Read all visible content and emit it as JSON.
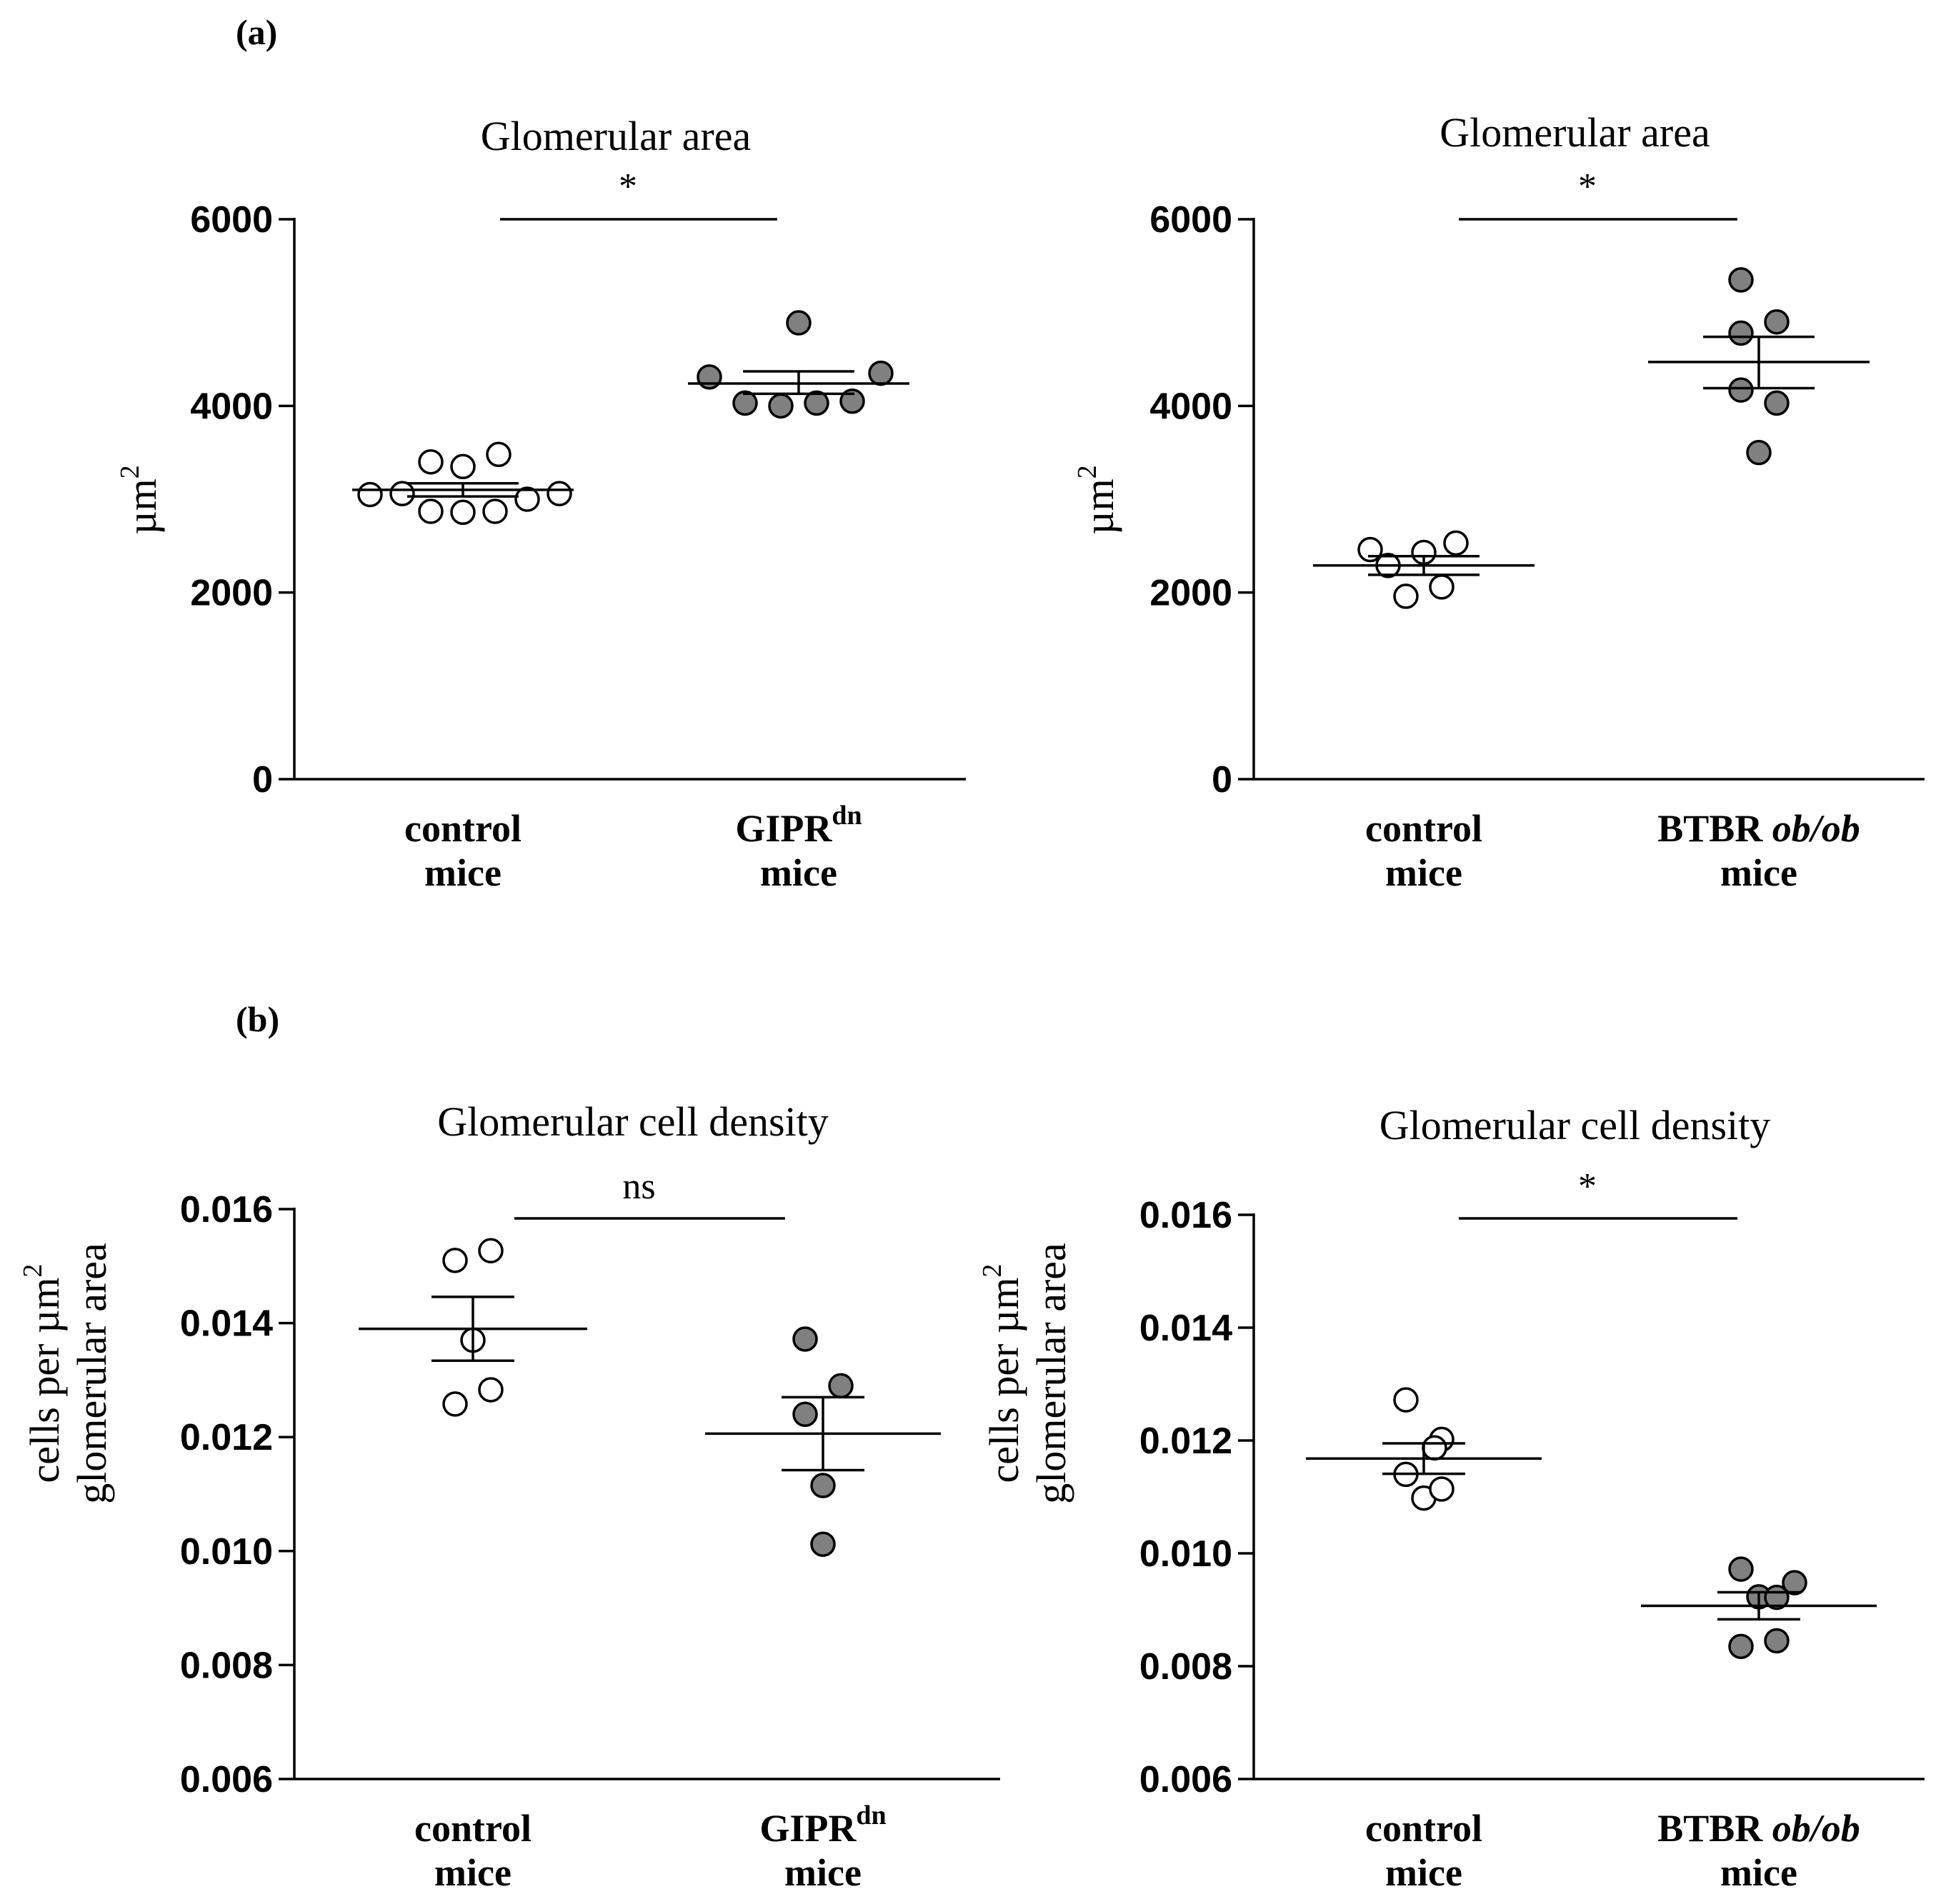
{
  "panels": {
    "a_label": "(a)",
    "b_label": "(b)"
  },
  "chart_data": [
    {
      "type": "scatter",
      "panel": "a",
      "position": "left",
      "title": "Glomerular area",
      "ylabel_lines": [
        "µm",
        "2"
      ],
      "ylim": [
        0,
        6000
      ],
      "yticks": [
        0,
        2000,
        4000,
        6000
      ],
      "ytick_labels": [
        "0",
        "2000",
        "4000",
        "6000"
      ],
      "significance": "*",
      "groups": [
        {
          "label_lines": [
            "control",
            "mice"
          ],
          "label_sup": "",
          "fill": "#ffffff",
          "points": [
            3050,
            3060,
            3400,
            3350,
            3480,
            2870,
            2860,
            2870,
            3000,
            3060
          ],
          "mean": 3100,
          "sem_low": 3030,
          "sem_high": 3170
        },
        {
          "label_lines": [
            "GIPR",
            "mice"
          ],
          "label_sup": "dn",
          "fill": "#808080",
          "points": [
            4310,
            4030,
            4000,
            4030,
            4050,
            4890,
            4350
          ],
          "mean": 4240,
          "sem_low": 4130,
          "sem_high": 4370
        }
      ]
    },
    {
      "type": "scatter",
      "panel": "a",
      "position": "right",
      "title": "Glomerular area",
      "ylabel_lines": [
        "µm",
        "2"
      ],
      "ylim": [
        0,
        6000
      ],
      "yticks": [
        0,
        2000,
        4000,
        6000
      ],
      "ytick_labels": [
        "0",
        "2000",
        "4000",
        "6000"
      ],
      "significance": "*",
      "groups": [
        {
          "label_lines": [
            "control",
            "mice"
          ],
          "label_sup": "",
          "fill": "#ffffff",
          "points": [
            2460,
            2290,
            2430,
            2530,
            1960,
            2060
          ],
          "mean": 2290,
          "sem_low": 2190,
          "sem_high": 2390
        },
        {
          "label_lines": [
            "BTBR ob/ob",
            "mice"
          ],
          "label_sup": "",
          "fill": "#808080",
          "points": [
            5350,
            4780,
            4900,
            4170,
            4030,
            3500
          ],
          "mean": 4470,
          "sem_low": 4190,
          "sem_high": 4740
        }
      ]
    },
    {
      "type": "scatter",
      "panel": "b",
      "position": "left",
      "title": "Glomerular cell density",
      "ylabel_lines": [
        "cells per µm",
        "2",
        "glomerular area"
      ],
      "ylim": [
        0.006,
        0.016
      ],
      "yticks": [
        0.006,
        0.008,
        0.01,
        0.012,
        0.014,
        0.016
      ],
      "ytick_labels": [
        "0.006",
        "0.008",
        "0.010",
        "0.012",
        "0.014",
        "0.016"
      ],
      "significance": "ns",
      "groups": [
        {
          "label_lines": [
            "control",
            "mice"
          ],
          "label_sup": "",
          "fill": "#ffffff",
          "points": [
            0.0151,
            0.01527,
            0.0137,
            0.01258,
            0.01283
          ],
          "mean": 0.0139,
          "sem_low": 0.01334,
          "sem_high": 0.01446
        },
        {
          "label_lines": [
            "GIPR",
            "mice"
          ],
          "label_sup": "dn",
          "fill": "#808080",
          "points": [
            0.01372,
            0.0129,
            0.0124,
            0.01115,
            0.01012
          ],
          "mean": 0.01206,
          "sem_low": 0.01142,
          "sem_high": 0.0127
        }
      ]
    },
    {
      "type": "scatter",
      "panel": "b",
      "position": "right",
      "title": "Glomerular cell density",
      "ylabel_lines": [
        "cells per µm",
        "2",
        "glomerular area"
      ],
      "ylim": [
        0.006,
        0.016
      ],
      "yticks": [
        0.006,
        0.008,
        0.01,
        0.012,
        0.014,
        0.016
      ],
      "ytick_labels": [
        "0.006",
        "0.008",
        "0.010",
        "0.012",
        "0.014",
        "0.016"
      ],
      "significance": "*",
      "groups": [
        {
          "label_lines": [
            "control",
            "mice"
          ],
          "label_sup": "",
          "fill": "#ffffff",
          "points": [
            0.01272,
            0.01202,
            0.01187,
            0.0114,
            0.01098,
            0.01114
          ],
          "mean": 0.01168,
          "sem_low": 0.01141,
          "sem_high": 0.01195
        },
        {
          "label_lines": [
            "BTBR ob/ob",
            "mice"
          ],
          "label_sup": "",
          "fill": "#808080",
          "points": [
            0.00972,
            0.00923,
            0.00922,
            0.00948,
            0.00835,
            0.00845
          ],
          "mean": 0.00907,
          "sem_low": 0.00883,
          "sem_high": 0.00931
        }
      ]
    }
  ]
}
